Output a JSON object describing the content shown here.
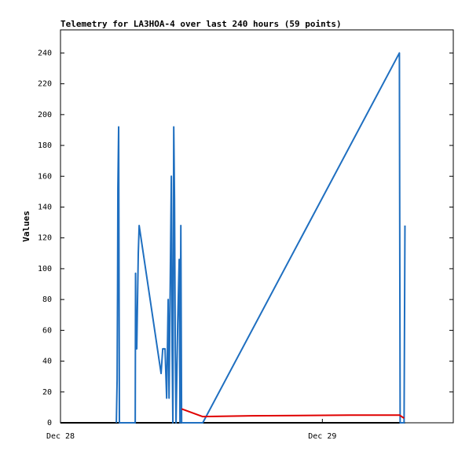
{
  "chart_data": {
    "type": "line",
    "title": "Telemetry for LA3HOA-4 over last 240 hours (59 points)",
    "y_label": "Values",
    "xlim": [
      0,
      36
    ],
    "xticks": [
      {
        "value": 0,
        "label": "Dec 28"
      },
      {
        "value": 24,
        "label": "Dec 29"
      }
    ],
    "ylim": [
      0,
      255
    ],
    "yticks": [
      0,
      20,
      40,
      60,
      80,
      100,
      120,
      140,
      160,
      180,
      200,
      220,
      240
    ],
    "series": [
      {
        "color": "#000000",
        "x": [
          0,
          31.57
        ],
        "values": [
          0,
          0
        ]
      },
      {
        "color": "#1f6fc0",
        "x": [
          5.12,
          5.19,
          5.23,
          5.26,
          5.33,
          5.4,
          5.98,
          6.85,
          6.88,
          6.92,
          6.99,
          7.06,
          7.13,
          7.21,
          9.22,
          9.37,
          9.58,
          9.73,
          9.87,
          9.95,
          10.16,
          10.23,
          10.3,
          10.38,
          10.45,
          10.52,
          10.59,
          10.74,
          10.88,
          10.95,
          11.03,
          11.1,
          13.04,
          31.06,
          31.13,
          31.49,
          31.57
        ],
        "values": [
          0,
          28,
          85,
          152,
          192,
          0,
          0,
          0,
          97,
          48,
          48,
          80,
          110,
          128,
          32,
          48,
          48,
          16,
          80,
          16,
          160,
          48,
          0,
          192,
          145,
          48,
          0,
          64,
          106,
          0,
          128,
          0,
          0,
          240,
          0,
          0,
          128
        ]
      },
      {
        "color": "#e00000",
        "x": [
          11.1,
          13.04,
          17.51,
          26.52,
          31.06,
          31.49
        ],
        "values": [
          9,
          4,
          4.5,
          5,
          5,
          3
        ]
      }
    ]
  }
}
